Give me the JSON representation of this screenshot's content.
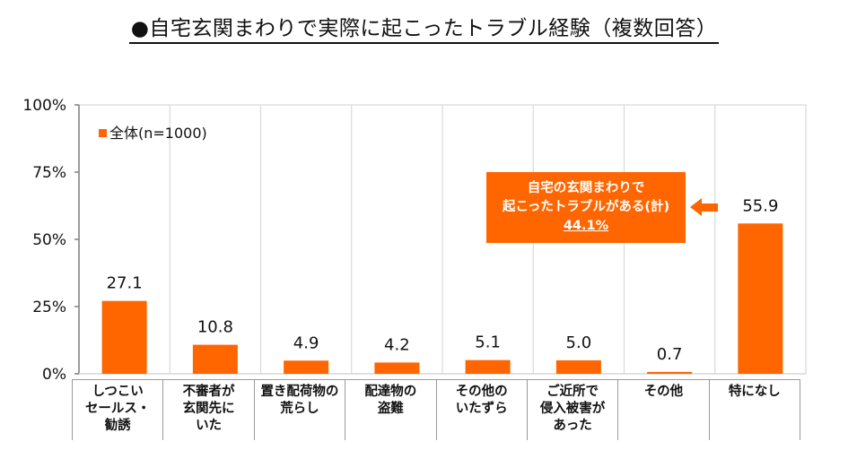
{
  "title": "●自宅玄関まわりで実際に起こったトラブル経験（複数回答）",
  "chart_data": {
    "type": "bar",
    "title": "●自宅玄関まわりで実際に起こったトラブル経験（複数回答）",
    "xlabel": "",
    "ylabel": "",
    "ylim": [
      0,
      100
    ],
    "y_ticks": [
      "0%",
      "25%",
      "50%",
      "75%",
      "100%"
    ],
    "y_tick_values": [
      0,
      25,
      50,
      75,
      100
    ],
    "grid": "vertical category separators",
    "legend": {
      "placement": "top-left",
      "entries": [
        "全体(n=1000)"
      ]
    },
    "categories": [
      "しつこい\nセールス・\n勧誘",
      "不審者が\n玄関先に\nいた",
      "置き配荷物の\n荒らし",
      "配達物の\n盗難",
      "その他の\nいたずら",
      "ご近所で\n侵入被害が\nあった",
      "その他",
      "特になし"
    ],
    "series": [
      {
        "name": "全体(n=1000)",
        "values": [
          27.1,
          10.8,
          4.9,
          4.2,
          5.1,
          5.0,
          0.7,
          55.9
        ],
        "color": "#ff6600"
      }
    ],
    "data_labels": [
      "27.1",
      "10.8",
      "4.9",
      "4.2",
      "5.1",
      "5.0",
      "0.7",
      "55.9"
    ],
    "annotation": {
      "line1": "自宅の玄関まわりで",
      "line2": "起こったトラブルがある(計)",
      "value": "44.1%",
      "points_to": "特になし"
    }
  },
  "colors": {
    "bar": "#ff6600",
    "axis": "#7f7f7f",
    "grid": "#d9d9d9"
  }
}
